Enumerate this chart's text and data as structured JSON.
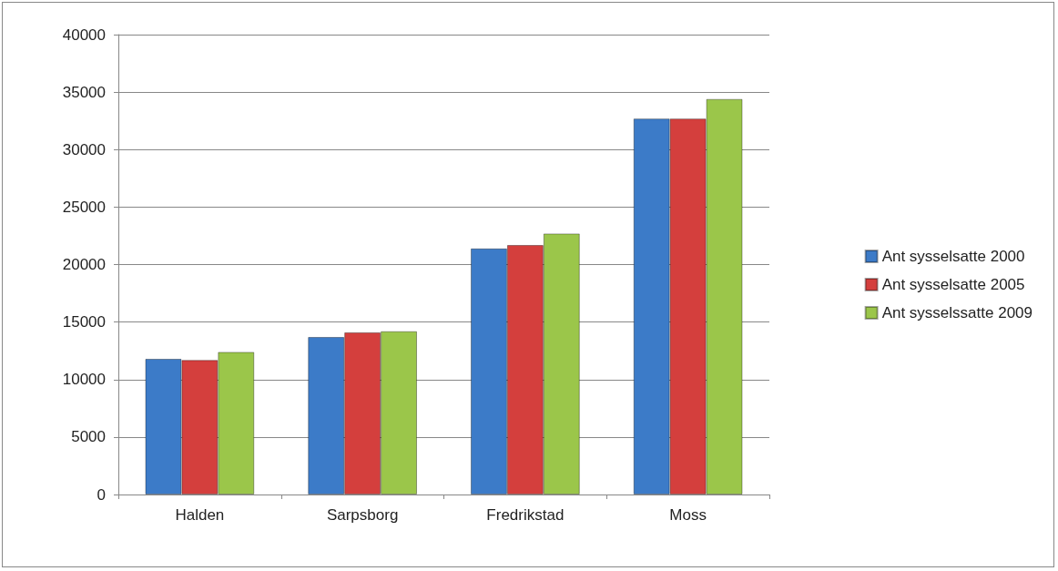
{
  "chart_data": {
    "type": "bar",
    "categories": [
      "Halden",
      "Sarpsborg",
      "Fredrikstad",
      "Moss"
    ],
    "series": [
      {
        "name": "Ant sysselsatte 2000",
        "color": "#3c7bc8",
        "values": [
          11800,
          13700,
          21400,
          32700
        ]
      },
      {
        "name": "Ant sysselsatte 2005",
        "color": "#d43f3d",
        "values": [
          11700,
          14100,
          21700,
          32700
        ]
      },
      {
        "name": "Ant sysselssatte 2009",
        "color": "#9bc64a",
        "values": [
          12400,
          14200,
          22700,
          34400
        ]
      }
    ],
    "ylim": [
      0,
      40000
    ],
    "yticks": [
      0,
      5000,
      10000,
      15000,
      20000,
      25000,
      30000,
      35000,
      40000
    ],
    "grid": "y",
    "legend": "right"
  }
}
